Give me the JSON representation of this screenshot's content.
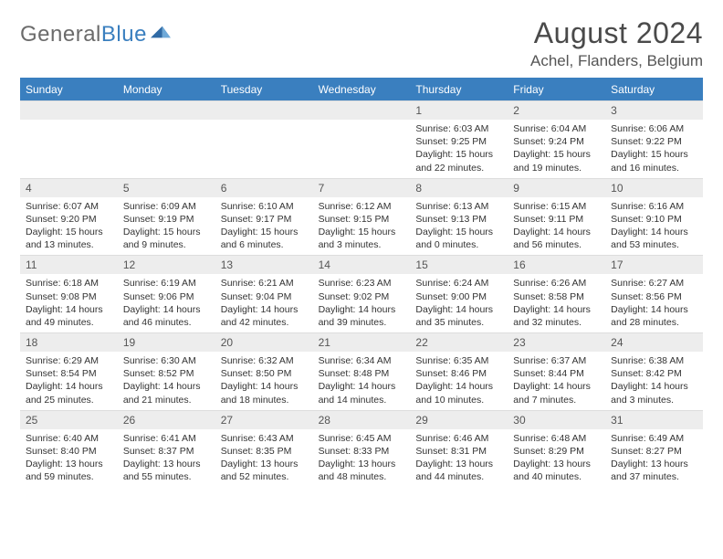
{
  "logo": {
    "word1": "General",
    "word2": "Blue"
  },
  "title": {
    "month": "August 2024",
    "location": "Achel, Flanders, Belgium"
  },
  "day_names": [
    "Sunday",
    "Monday",
    "Tuesday",
    "Wednesday",
    "Thursday",
    "Friday",
    "Saturday"
  ],
  "colors": {
    "header_blue": "#3a7fbf",
    "daynum_bg": "#ededed",
    "text": "#333333",
    "logo_gray": "#6b6b6b"
  },
  "weeks": [
    {
      "nums": [
        "",
        "",
        "",
        "",
        "1",
        "2",
        "3"
      ],
      "cells": [
        {
          "sunrise": "",
          "sunset": "",
          "daylight": ""
        },
        {
          "sunrise": "",
          "sunset": "",
          "daylight": ""
        },
        {
          "sunrise": "",
          "sunset": "",
          "daylight": ""
        },
        {
          "sunrise": "",
          "sunset": "",
          "daylight": ""
        },
        {
          "sunrise": "Sunrise: 6:03 AM",
          "sunset": "Sunset: 9:25 PM",
          "daylight": "Daylight: 15 hours and 22 minutes."
        },
        {
          "sunrise": "Sunrise: 6:04 AM",
          "sunset": "Sunset: 9:24 PM",
          "daylight": "Daylight: 15 hours and 19 minutes."
        },
        {
          "sunrise": "Sunrise: 6:06 AM",
          "sunset": "Sunset: 9:22 PM",
          "daylight": "Daylight: 15 hours and 16 minutes."
        }
      ]
    },
    {
      "nums": [
        "4",
        "5",
        "6",
        "7",
        "8",
        "9",
        "10"
      ],
      "cells": [
        {
          "sunrise": "Sunrise: 6:07 AM",
          "sunset": "Sunset: 9:20 PM",
          "daylight": "Daylight: 15 hours and 13 minutes."
        },
        {
          "sunrise": "Sunrise: 6:09 AM",
          "sunset": "Sunset: 9:19 PM",
          "daylight": "Daylight: 15 hours and 9 minutes."
        },
        {
          "sunrise": "Sunrise: 6:10 AM",
          "sunset": "Sunset: 9:17 PM",
          "daylight": "Daylight: 15 hours and 6 minutes."
        },
        {
          "sunrise": "Sunrise: 6:12 AM",
          "sunset": "Sunset: 9:15 PM",
          "daylight": "Daylight: 15 hours and 3 minutes."
        },
        {
          "sunrise": "Sunrise: 6:13 AM",
          "sunset": "Sunset: 9:13 PM",
          "daylight": "Daylight: 15 hours and 0 minutes."
        },
        {
          "sunrise": "Sunrise: 6:15 AM",
          "sunset": "Sunset: 9:11 PM",
          "daylight": "Daylight: 14 hours and 56 minutes."
        },
        {
          "sunrise": "Sunrise: 6:16 AM",
          "sunset": "Sunset: 9:10 PM",
          "daylight": "Daylight: 14 hours and 53 minutes."
        }
      ]
    },
    {
      "nums": [
        "11",
        "12",
        "13",
        "14",
        "15",
        "16",
        "17"
      ],
      "cells": [
        {
          "sunrise": "Sunrise: 6:18 AM",
          "sunset": "Sunset: 9:08 PM",
          "daylight": "Daylight: 14 hours and 49 minutes."
        },
        {
          "sunrise": "Sunrise: 6:19 AM",
          "sunset": "Sunset: 9:06 PM",
          "daylight": "Daylight: 14 hours and 46 minutes."
        },
        {
          "sunrise": "Sunrise: 6:21 AM",
          "sunset": "Sunset: 9:04 PM",
          "daylight": "Daylight: 14 hours and 42 minutes."
        },
        {
          "sunrise": "Sunrise: 6:23 AM",
          "sunset": "Sunset: 9:02 PM",
          "daylight": "Daylight: 14 hours and 39 minutes."
        },
        {
          "sunrise": "Sunrise: 6:24 AM",
          "sunset": "Sunset: 9:00 PM",
          "daylight": "Daylight: 14 hours and 35 minutes."
        },
        {
          "sunrise": "Sunrise: 6:26 AM",
          "sunset": "Sunset: 8:58 PM",
          "daylight": "Daylight: 14 hours and 32 minutes."
        },
        {
          "sunrise": "Sunrise: 6:27 AM",
          "sunset": "Sunset: 8:56 PM",
          "daylight": "Daylight: 14 hours and 28 minutes."
        }
      ]
    },
    {
      "nums": [
        "18",
        "19",
        "20",
        "21",
        "22",
        "23",
        "24"
      ],
      "cells": [
        {
          "sunrise": "Sunrise: 6:29 AM",
          "sunset": "Sunset: 8:54 PM",
          "daylight": "Daylight: 14 hours and 25 minutes."
        },
        {
          "sunrise": "Sunrise: 6:30 AM",
          "sunset": "Sunset: 8:52 PM",
          "daylight": "Daylight: 14 hours and 21 minutes."
        },
        {
          "sunrise": "Sunrise: 6:32 AM",
          "sunset": "Sunset: 8:50 PM",
          "daylight": "Daylight: 14 hours and 18 minutes."
        },
        {
          "sunrise": "Sunrise: 6:34 AM",
          "sunset": "Sunset: 8:48 PM",
          "daylight": "Daylight: 14 hours and 14 minutes."
        },
        {
          "sunrise": "Sunrise: 6:35 AM",
          "sunset": "Sunset: 8:46 PM",
          "daylight": "Daylight: 14 hours and 10 minutes."
        },
        {
          "sunrise": "Sunrise: 6:37 AM",
          "sunset": "Sunset: 8:44 PM",
          "daylight": "Daylight: 14 hours and 7 minutes."
        },
        {
          "sunrise": "Sunrise: 6:38 AM",
          "sunset": "Sunset: 8:42 PM",
          "daylight": "Daylight: 14 hours and 3 minutes."
        }
      ]
    },
    {
      "nums": [
        "25",
        "26",
        "27",
        "28",
        "29",
        "30",
        "31"
      ],
      "cells": [
        {
          "sunrise": "Sunrise: 6:40 AM",
          "sunset": "Sunset: 8:40 PM",
          "daylight": "Daylight: 13 hours and 59 minutes."
        },
        {
          "sunrise": "Sunrise: 6:41 AM",
          "sunset": "Sunset: 8:37 PM",
          "daylight": "Daylight: 13 hours and 55 minutes."
        },
        {
          "sunrise": "Sunrise: 6:43 AM",
          "sunset": "Sunset: 8:35 PM",
          "daylight": "Daylight: 13 hours and 52 minutes."
        },
        {
          "sunrise": "Sunrise: 6:45 AM",
          "sunset": "Sunset: 8:33 PM",
          "daylight": "Daylight: 13 hours and 48 minutes."
        },
        {
          "sunrise": "Sunrise: 6:46 AM",
          "sunset": "Sunset: 8:31 PM",
          "daylight": "Daylight: 13 hours and 44 minutes."
        },
        {
          "sunrise": "Sunrise: 6:48 AM",
          "sunset": "Sunset: 8:29 PM",
          "daylight": "Daylight: 13 hours and 40 minutes."
        },
        {
          "sunrise": "Sunrise: 6:49 AM",
          "sunset": "Sunset: 8:27 PM",
          "daylight": "Daylight: 13 hours and 37 minutes."
        }
      ]
    }
  ]
}
